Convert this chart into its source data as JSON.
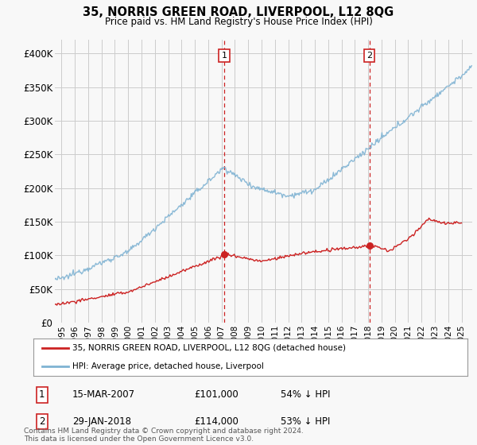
{
  "title": "35, NORRIS GREEN ROAD, LIVERPOOL, L12 8QG",
  "subtitle": "Price paid vs. HM Land Registry's House Price Index (HPI)",
  "ylabel_ticks": [
    "£0",
    "£50K",
    "£100K",
    "£150K",
    "£200K",
    "£250K",
    "£300K",
    "£350K",
    "£400K"
  ],
  "ytick_values": [
    0,
    50000,
    100000,
    150000,
    200000,
    250000,
    300000,
    350000,
    400000
  ],
  "ylim": [
    0,
    420000
  ],
  "xlim_start": 1994.5,
  "xlim_end": 2025.8,
  "hpi_color": "#7fb3d3",
  "price_color": "#cc2222",
  "marker1_x": 2007.21,
  "marker2_x": 2018.08,
  "marker1_price": 101000,
  "marker2_price": 114000,
  "legend_line1": "35, NORRIS GREEN ROAD, LIVERPOOL, L12 8QG (detached house)",
  "legend_line2": "HPI: Average price, detached house, Liverpool",
  "footnote": "Contains HM Land Registry data © Crown copyright and database right 2024.\nThis data is licensed under the Open Government Licence v3.0.",
  "background_color": "#f8f8f8",
  "plot_background": "#f8f8f8",
  "grid_color": "#cccccc"
}
